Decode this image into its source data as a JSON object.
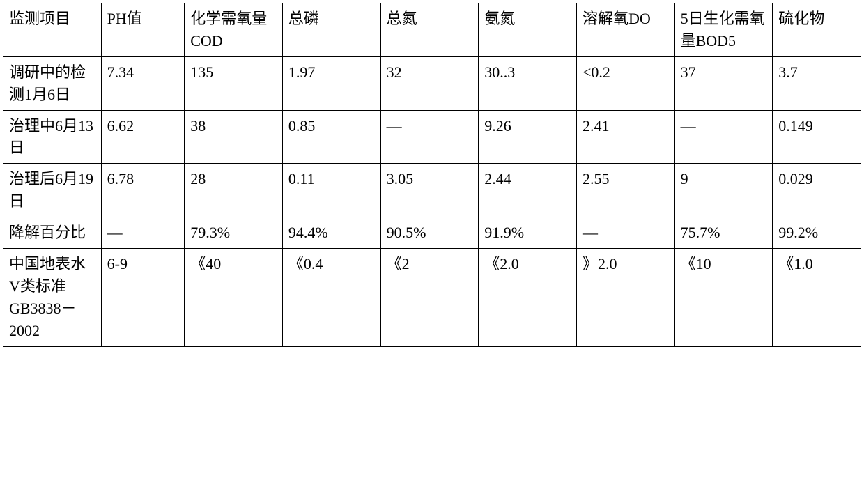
{
  "table": {
    "type": "table",
    "background_color": "#ffffff",
    "border_color": "#000000",
    "border_width": 1.5,
    "font_family": "SimSun",
    "font_size": 22,
    "text_color": "#000000",
    "column_count": 9,
    "columns": [
      "监测项目",
      "PH值",
      "化学需氧量COD",
      "总磷",
      "总氮",
      "氨氮",
      "溶解氧DO",
      "5日生化需氧量BOD5",
      "硫化物"
    ],
    "rows": [
      {
        "label": "调研中的检测1月6日",
        "cells": [
          "7.34",
          "135",
          "1.97",
          "32",
          "30..3",
          "<0.2",
          "37",
          "3.7"
        ]
      },
      {
        "label": "治理中6月13日",
        "cells": [
          "6.62",
          "38",
          "0.85",
          "—",
          "9.26",
          "2.41",
          "—",
          "0.149"
        ]
      },
      {
        "label": "治理后6月19日",
        "cells": [
          "6.78",
          "28",
          "0.11",
          "3.05",
          "2.44",
          "2.55",
          "9",
          "0.029"
        ]
      },
      {
        "label": "降解百分比",
        "cells": [
          "—",
          "79.3%",
          "94.4%",
          "90.5%",
          "91.9%",
          "—",
          "75.7%",
          "99.2%"
        ]
      },
      {
        "label": "中国地表水V类标准GB3838－2002",
        "cells": [
          "6-9",
          "《40",
          "《0.4",
          "《2",
          "《2.0",
          "》2.0",
          "《10",
          "《1.0"
        ]
      }
    ]
  }
}
